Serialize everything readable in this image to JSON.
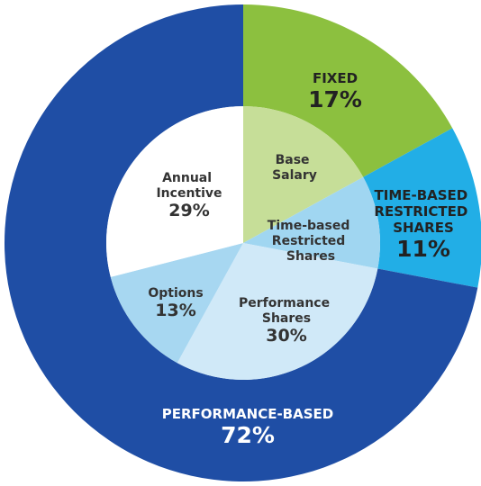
{
  "chart_data": [
    {
      "type": "donut",
      "categories": [
        "FIXED",
        "TIME-BASED RESTRICTED SHARES",
        "PERFORMANCE-BASED"
      ],
      "values": [
        17,
        11,
        72
      ],
      "value_labels": [
        "17%",
        "11%",
        "72%"
      ],
      "colors": [
        "#8cc03f",
        "#22aee6",
        "#1f4ea5"
      ]
    },
    {
      "type": "pie",
      "categories": [
        "Base Salary",
        "Time-based Restricted Shares",
        "Performance Shares",
        "Options",
        "Annual Incentive"
      ],
      "values": [
        17,
        11,
        30,
        13,
        29
      ],
      "value_labels": [
        null,
        null,
        "30%",
        "13%",
        "29%"
      ],
      "colors": [
        "#c6de98",
        "#a0d6f1",
        "#d0e9f8",
        "#a7d7f1",
        "#ffffff"
      ]
    }
  ]
}
